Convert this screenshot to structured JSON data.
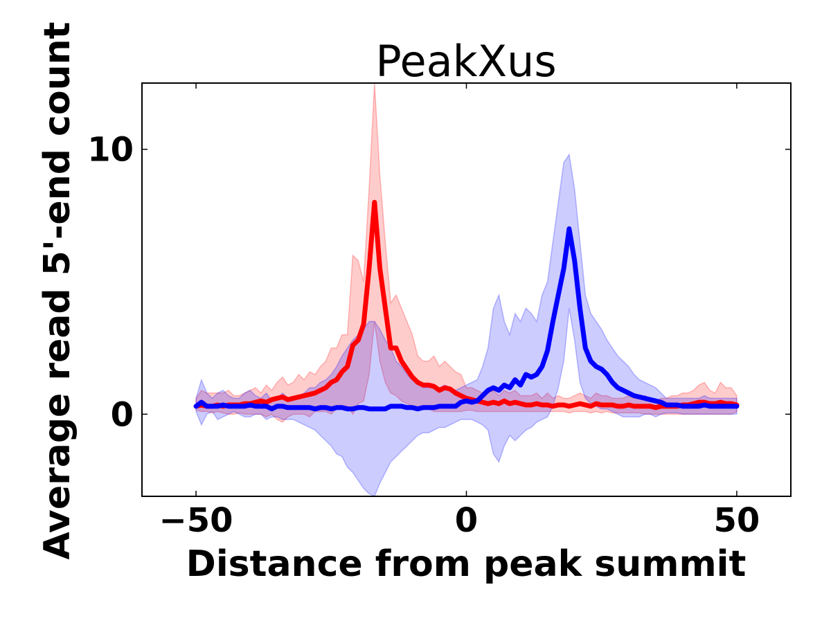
{
  "chart_data": {
    "type": "line",
    "title": "PeakXus",
    "xlabel": "Distance from peak summit",
    "ylabel": "Average read 5'-end count",
    "xlim": [
      -60,
      60
    ],
    "ylim": [
      -3.1,
      12.5
    ],
    "xticks": [
      -50,
      0,
      50
    ],
    "xtick_labels": [
      "−50",
      "0",
      "50"
    ],
    "yticks": [
      0,
      10
    ],
    "ytick_labels": [
      "0",
      "10"
    ],
    "grid": false,
    "legend": "none",
    "x": [
      -50,
      -49,
      -48,
      -47,
      -46,
      -45,
      -44,
      -43,
      -42,
      -41,
      -40,
      -39,
      -38,
      -37,
      -36,
      -35,
      -34,
      -33,
      -32,
      -31,
      -30,
      -29,
      -28,
      -27,
      -26,
      -25,
      -24,
      -23,
      -22,
      -21,
      -20,
      -19,
      -18,
      -17,
      -16,
      -15,
      -14,
      -13,
      -12,
      -11,
      -10,
      -9,
      -8,
      -7,
      -6,
      -5,
      -4,
      -3,
      -2,
      -1,
      0,
      1,
      2,
      3,
      4,
      5,
      6,
      7,
      8,
      9,
      10,
      11,
      12,
      13,
      14,
      15,
      16,
      17,
      18,
      19,
      20,
      21,
      22,
      23,
      24,
      25,
      26,
      27,
      28,
      29,
      30,
      31,
      32,
      33,
      34,
      35,
      36,
      37,
      38,
      39,
      40,
      41,
      42,
      43,
      44,
      45,
      46,
      47,
      48,
      49,
      50
    ],
    "series": [
      {
        "color": "#ff0000",
        "band_color": "#ff0000",
        "values": [
          0.3,
          0.35,
          0.3,
          0.3,
          0.35,
          0.3,
          0.35,
          0.35,
          0.35,
          0.4,
          0.4,
          0.45,
          0.5,
          0.45,
          0.55,
          0.6,
          0.65,
          0.55,
          0.6,
          0.65,
          0.7,
          0.75,
          0.8,
          0.9,
          1.0,
          1.2,
          1.3,
          1.6,
          1.8,
          2.6,
          2.8,
          3.4,
          5.5,
          8.0,
          5.5,
          4.0,
          2.5,
          2.5,
          2.0,
          1.7,
          1.4,
          1.2,
          1.1,
          1.1,
          1.05,
          0.9,
          1.0,
          0.95,
          0.8,
          0.7,
          0.6,
          0.55,
          0.5,
          0.45,
          0.4,
          0.45,
          0.4,
          0.5,
          0.4,
          0.45,
          0.4,
          0.35,
          0.35,
          0.4,
          0.35,
          0.35,
          0.3,
          0.35,
          0.35,
          0.3,
          0.35,
          0.4,
          0.35,
          0.3,
          0.4,
          0.35,
          0.35,
          0.35,
          0.3,
          0.3,
          0.35,
          0.3,
          0.3,
          0.3,
          0.3,
          0.25,
          0.3,
          0.3,
          0.3,
          0.3,
          0.35,
          0.35,
          0.4,
          0.45,
          0.45,
          0.4,
          0.4,
          0.45,
          0.4,
          0.4,
          0.35
        ],
        "upper": [
          0.6,
          0.9,
          0.8,
          0.8,
          0.8,
          0.8,
          0.9,
          0.7,
          0.7,
          0.8,
          0.9,
          1.0,
          0.8,
          1.1,
          0.9,
          1.2,
          1.4,
          1.1,
          1.2,
          1.5,
          1.3,
          1.6,
          1.5,
          1.8,
          2.0,
          2.5,
          2.5,
          3.0,
          3.0,
          6.0,
          5.8,
          5.0,
          8.5,
          12.5,
          9.0,
          6.5,
          4.2,
          4.5,
          4.0,
          3.5,
          3.0,
          2.2,
          2.0,
          2.0,
          2.2,
          1.8,
          2.0,
          1.8,
          1.6,
          1.5,
          1.0,
          1.0,
          0.9,
          0.8,
          0.8,
          0.9,
          0.7,
          0.9,
          0.8,
          0.9,
          0.7,
          0.7,
          0.7,
          0.8,
          0.6,
          0.8,
          0.6,
          0.7,
          0.6,
          0.6,
          0.7,
          0.8,
          0.7,
          0.6,
          0.8,
          0.7,
          0.7,
          0.6,
          0.6,
          0.6,
          0.7,
          0.6,
          0.6,
          0.7,
          0.6,
          0.5,
          0.6,
          0.6,
          0.7,
          0.7,
          0.8,
          0.8,
          0.9,
          1.1,
          1.2,
          0.9,
          0.8,
          1.2,
          1.0,
          1.0,
          0.7
        ],
        "lower": [
          0.15,
          0.1,
          0.1,
          0.05,
          0.1,
          0.05,
          0.0,
          0.0,
          0.05,
          0.0,
          0.0,
          0.0,
          0.0,
          -0.1,
          0.0,
          -0.2,
          -0.3,
          -0.1,
          0.0,
          0.0,
          0.0,
          -0.1,
          0.1,
          0.1,
          0.1,
          0.0,
          0.2,
          0.3,
          0.3,
          0.0,
          0.4,
          0.5,
          1.5,
          3.5,
          2.0,
          1.2,
          0.8,
          0.7,
          0.5,
          0.4,
          0.3,
          0.2,
          0.2,
          0.2,
          0.1,
          0.1,
          0.1,
          0.1,
          0.1,
          0.1,
          0.15,
          0.15,
          0.1,
          0.1,
          0.1,
          0.1,
          0.1,
          0.1,
          0.1,
          0.1,
          0.1,
          0.1,
          0.1,
          0.1,
          0.1,
          0.1,
          0.1,
          0.1,
          0.1,
          0.05,
          0.1,
          0.1,
          0.1,
          0.05,
          0.1,
          0.05,
          0.1,
          0.05,
          0.05,
          0.05,
          0.05,
          0.05,
          0.05,
          0.0,
          0.0,
          0.0,
          0.0,
          0.0,
          0.0,
          0.0,
          0.0,
          0.0,
          0.0,
          0.0,
          0.0,
          0.0,
          0.0,
          0.0,
          0.0,
          0.0,
          0.1
        ]
      },
      {
        "color": "#0000ff",
        "band_color": "#0000ff",
        "values": [
          0.3,
          0.45,
          0.3,
          0.3,
          0.3,
          0.35,
          0.3,
          0.3,
          0.3,
          0.3,
          0.35,
          0.3,
          0.3,
          0.3,
          0.2,
          0.3,
          0.3,
          0.25,
          0.25,
          0.25,
          0.25,
          0.25,
          0.2,
          0.25,
          0.25,
          0.2,
          0.25,
          0.25,
          0.2,
          0.2,
          0.25,
          0.25,
          0.2,
          0.2,
          0.2,
          0.2,
          0.3,
          0.3,
          0.3,
          0.25,
          0.25,
          0.2,
          0.25,
          0.25,
          0.25,
          0.3,
          0.3,
          0.3,
          0.3,
          0.45,
          0.5,
          0.45,
          0.5,
          0.7,
          0.9,
          1.0,
          0.9,
          1.1,
          1.0,
          1.3,
          1.1,
          1.5,
          1.4,
          1.5,
          1.8,
          2.4,
          3.5,
          4.5,
          5.5,
          7.0,
          5.8,
          4.0,
          2.5,
          2.0,
          1.8,
          1.7,
          1.5,
          1.2,
          1.0,
          0.9,
          0.8,
          0.7,
          0.65,
          0.6,
          0.55,
          0.5,
          0.45,
          0.35,
          0.35,
          0.35,
          0.3,
          0.3,
          0.3,
          0.3,
          0.35,
          0.3,
          0.3,
          0.3,
          0.3,
          0.3,
          0.3
        ],
        "upper": [
          0.6,
          1.3,
          0.8,
          0.6,
          0.8,
          0.9,
          0.7,
          0.6,
          0.6,
          0.8,
          0.9,
          0.7,
          0.6,
          0.8,
          0.5,
          0.6,
          0.8,
          0.6,
          0.6,
          0.7,
          0.8,
          1.0,
          1.0,
          1.2,
          1.3,
          1.5,
          1.8,
          2.2,
          2.5,
          2.8,
          3.0,
          3.2,
          3.5,
          3.5,
          3.2,
          2.8,
          2.5,
          2.0,
          1.8,
          1.5,
          1.3,
          1.2,
          1.0,
          1.0,
          1.1,
          1.0,
          1.1,
          1.0,
          0.9,
          1.0,
          1.1,
          1.2,
          1.3,
          1.8,
          2.5,
          4.0,
          4.5,
          3.5,
          3.0,
          3.8,
          3.5,
          4.0,
          3.8,
          3.5,
          4.5,
          5.0,
          6.5,
          8.0,
          9.5,
          9.8,
          8.5,
          6.5,
          4.5,
          3.8,
          3.5,
          3.2,
          2.8,
          2.5,
          2.2,
          2.0,
          1.8,
          1.5,
          1.3,
          1.2,
          1.1,
          1.0,
          0.8,
          0.6,
          0.6,
          0.6,
          0.6,
          0.6,
          0.6,
          0.6,
          0.7,
          0.6,
          0.6,
          0.6,
          0.6,
          0.6,
          0.6
        ],
        "lower": [
          0.1,
          -0.4,
          0.0,
          0.1,
          -0.2,
          -0.1,
          0.0,
          0.1,
          0.0,
          -0.1,
          -0.1,
          0.0,
          0.0,
          -0.2,
          -0.1,
          -0.1,
          -0.2,
          -0.2,
          -0.2,
          -0.3,
          -0.4,
          -0.5,
          -0.6,
          -0.8,
          -1.0,
          -1.2,
          -1.5,
          -1.6,
          -2.0,
          -2.2,
          -2.5,
          -2.8,
          -3.0,
          -3.1,
          -2.6,
          -2.2,
          -1.8,
          -1.6,
          -1.4,
          -1.2,
          -1.0,
          -0.8,
          -0.7,
          -0.7,
          -0.6,
          -0.5,
          -0.5,
          -0.4,
          -0.3,
          -0.2,
          -0.2,
          -0.2,
          -0.3,
          -0.4,
          -0.6,
          -1.5,
          -1.8,
          -1.2,
          -0.8,
          -1.0,
          -0.8,
          -0.6,
          -0.5,
          -0.3,
          -0.2,
          -0.1,
          0.3,
          1.0,
          2.0,
          4.0,
          2.8,
          1.2,
          0.6,
          0.4,
          0.3,
          0.2,
          0.2,
          0.1,
          0.0,
          -0.1,
          -0.1,
          -0.1,
          -0.1,
          0.0,
          0.0,
          -0.1,
          0.0,
          0.05,
          0.05,
          0.05,
          0.0,
          0.0,
          0.0,
          0.0,
          0.0,
          0.0,
          0.0,
          0.0,
          0.0,
          0.0,
          0.0
        ]
      }
    ]
  }
}
